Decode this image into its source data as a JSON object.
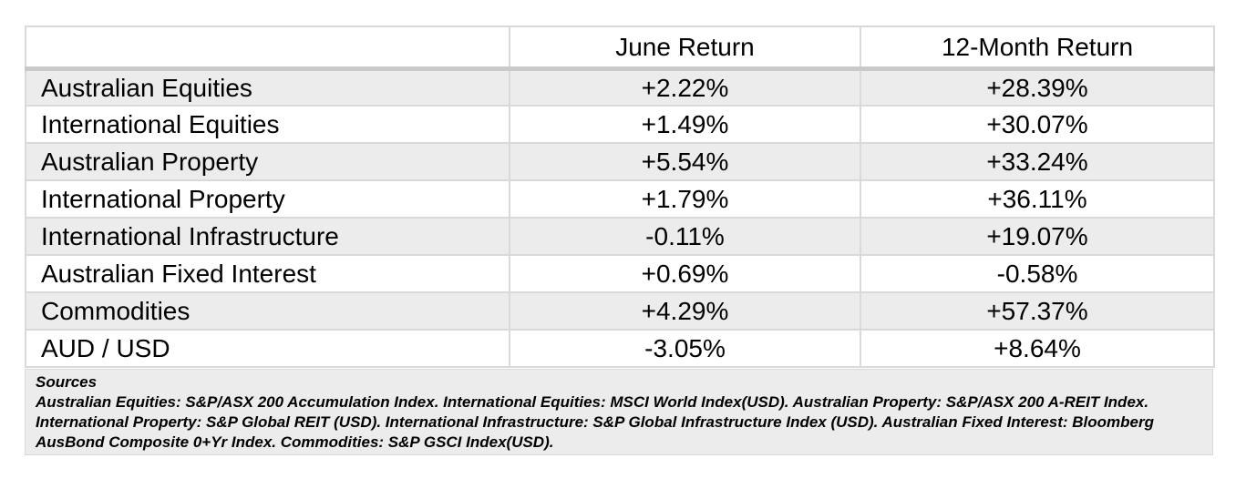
{
  "table": {
    "columns": [
      "",
      "June Return",
      "12-Month Return"
    ],
    "rows": [
      {
        "asset": "Australian Equities",
        "june_return": "+2.22%",
        "twelve_month_return": "+28.39%"
      },
      {
        "asset": "International Equities",
        "june_return": "+1.49%",
        "twelve_month_return": "+30.07%"
      },
      {
        "asset": "Australian Property",
        "june_return": "+5.54%",
        "twelve_month_return": "+33.24%"
      },
      {
        "asset": "International Property",
        "june_return": "+1.79%",
        "twelve_month_return": "+36.11%"
      },
      {
        "asset": "International Infrastructure",
        "june_return": "-0.11%",
        "twelve_month_return": "+19.07%"
      },
      {
        "asset": "Australian Fixed Interest",
        "june_return": "+0.69%",
        "twelve_month_return": "-0.58%"
      },
      {
        "asset": "Commodities",
        "june_return": "+4.29%",
        "twelve_month_return": "+57.37%"
      },
      {
        "asset": "AUD / USD",
        "june_return": "-3.05%",
        "twelve_month_return": "+8.64%"
      }
    ]
  },
  "sources": {
    "title": "Sources",
    "text": "Australian Equities: S&P/ASX 200 Accumulation Index. International Equities: MSCI World Index(USD). Australian Property: S&P/ASX 200 A-REIT Index. International Property: S&P Global REIT (USD). International Infrastructure: S&P Global Infrastructure Index (USD). Australian Fixed Interest: Bloomberg AusBond Composite 0+Yr Index. Commodities: S&P GSCI Index(USD)."
  },
  "colors": {
    "stripe": "#ececec",
    "header_band": "#c9c9c9",
    "grid_border": "#d9d9d9",
    "text": "#000000",
    "background": "#ffffff"
  }
}
